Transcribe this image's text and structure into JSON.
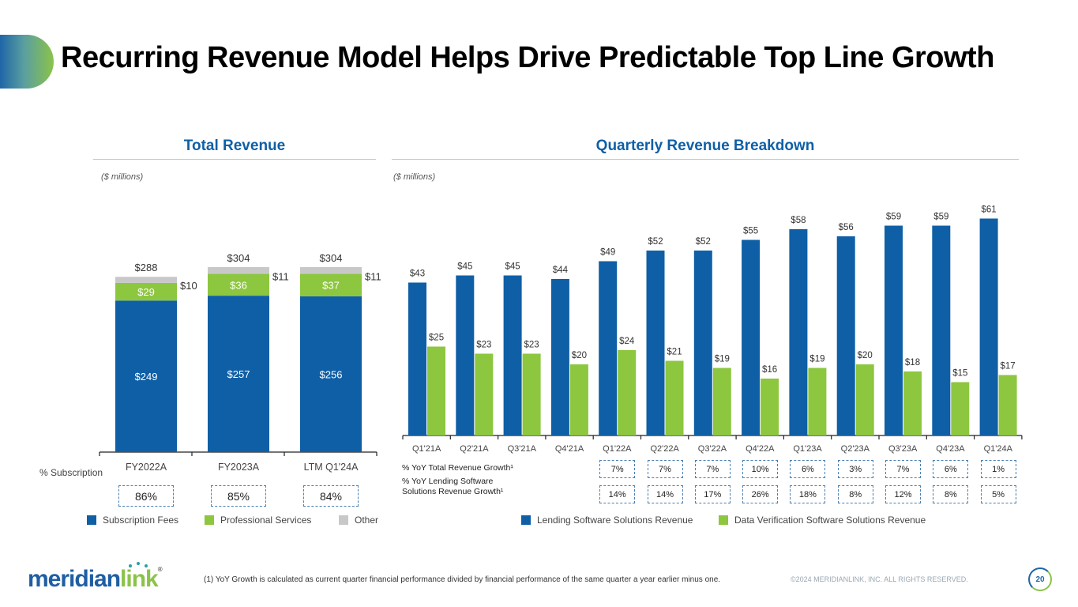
{
  "header": {
    "title": "Recurring Revenue Model Helps Drive Predictable Top Line Growth"
  },
  "colors": {
    "blue": "#0f5fa6",
    "green": "#8dc63f",
    "gray": "#c8c8c8",
    "title_blue": "#0f5fa6"
  },
  "chart_data": [
    {
      "type": "bar",
      "stacked": true,
      "title": "Total Revenue",
      "units": "($ millions)",
      "categories": [
        "FY2022A",
        "FY2023A",
        "LTM Q1'24A"
      ],
      "series": [
        {
          "name": "Subscription Fees",
          "values": [
            249,
            257,
            256
          ],
          "labels": [
            "$249",
            "$257",
            "$256"
          ]
        },
        {
          "name": "Professional Services",
          "values": [
            29,
            36,
            37
          ],
          "labels": [
            "$29",
            "$36",
            "$37"
          ]
        },
        {
          "name": "Other",
          "values": [
            10,
            11,
            11
          ],
          "labels": [
            "$10",
            "$11",
            "$11"
          ]
        }
      ],
      "totals": [
        288,
        304,
        304
      ],
      "total_labels": [
        "$288",
        "$304",
        "$304"
      ],
      "ylim": [
        0,
        320
      ],
      "grid": false,
      "legend": "bottom",
      "subscription_pct_label": "% Subscription",
      "subscription_pct": [
        "86%",
        "85%",
        "84%"
      ]
    },
    {
      "type": "bar",
      "stacked": false,
      "title": "Quarterly Revenue Breakdown",
      "units": "($ millions)",
      "categories": [
        "Q1'21A",
        "Q2'21A",
        "Q3'21A",
        "Q4'21A",
        "Q1'22A",
        "Q2'22A",
        "Q3'22A",
        "Q4'22A",
        "Q1'23A",
        "Q2'23A",
        "Q3'23A",
        "Q4'23A",
        "Q1'24A"
      ],
      "series": [
        {
          "name": "Lending Software Solutions Revenue",
          "values": [
            43,
            45,
            45,
            44,
            49,
            52,
            52,
            55,
            58,
            56,
            59,
            59,
            61
          ],
          "labels": [
            "$43",
            "$45",
            "$45",
            "$44",
            "$49",
            "$52",
            "$52",
            "$55",
            "$58",
            "$56",
            "$59",
            "$59",
            "$61"
          ]
        },
        {
          "name": "Data Verification Software Solutions Revenue",
          "values": [
            25,
            23,
            23,
            20,
            24,
            21,
            19,
            16,
            19,
            20,
            18,
            15,
            17
          ],
          "labels": [
            "$25",
            "$23",
            "$23",
            "$20",
            "$24",
            "$21",
            "$19",
            "$16",
            "$19",
            "$20",
            "$18",
            "$15",
            "$17"
          ]
        }
      ],
      "ylim": [
        0,
        65
      ],
      "grid": false,
      "legend": "bottom",
      "growth_rows": [
        {
          "label": "% YoY Total Revenue Growth¹",
          "values": [
            "7%",
            "7%",
            "7%",
            "10%",
            "6%",
            "3%",
            "7%",
            "6%",
            "1%"
          ]
        },
        {
          "label_line1": "% YoY Lending Software",
          "label_line2": "Solutions Revenue Growth¹",
          "values": [
            "14%",
            "14%",
            "17%",
            "26%",
            "18%",
            "8%",
            "12%",
            "8%",
            "5%"
          ]
        }
      ]
    }
  ],
  "footer": {
    "logo_main": "meridian",
    "logo_accent": "link",
    "logo_reg": "®",
    "footnote": "(1) YoY Growth is calculated as current quarter financial performance divided by financial performance of the same quarter a year earlier minus one.",
    "copyright": "©2024 MERIDIANLINK, INC. ALL RIGHTS RESERVED.",
    "page_number": "20"
  }
}
